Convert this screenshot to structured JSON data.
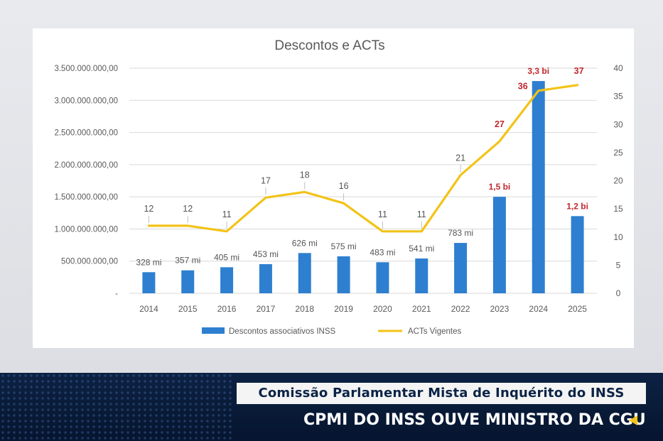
{
  "chart_data": {
    "type": "bar+line",
    "title": "Descontos e ACTs",
    "categories": [
      "2014",
      "2015",
      "2016",
      "2017",
      "2018",
      "2019",
      "2020",
      "2021",
      "2022",
      "2023",
      "2024",
      "2025"
    ],
    "series": [
      {
        "name": "Descontos associativos INSS",
        "type": "bar",
        "axis": "left",
        "color": "#2e7fd0",
        "values": [
          328000000,
          357000000,
          405000000,
          453000000,
          626000000,
          575000000,
          483000000,
          541000000,
          783000000,
          1500000000,
          3300000000,
          1200000000
        ],
        "labels": [
          "328 mi",
          "357 mi",
          "405 mi",
          "453 mi",
          "626 mi",
          "575 mi",
          "483 mi",
          "541 mi",
          "783 mi",
          "1,5 bi",
          "3,3 bi",
          "1,2 bi"
        ],
        "label_colors": [
          "#555555",
          "#555555",
          "#555555",
          "#555555",
          "#555555",
          "#555555",
          "#555555",
          "#555555",
          "#555555",
          "#c0272d",
          "#c0272d",
          "#c0272d"
        ]
      },
      {
        "name": "ACTs Vigentes",
        "type": "line",
        "axis": "right",
        "color": "#f2c318",
        "values": [
          12,
          12,
          11,
          17,
          18,
          16,
          11,
          11,
          21,
          27,
          36,
          37
        ],
        "labels": [
          "12",
          "12",
          "11",
          "17",
          "18",
          "16",
          "11",
          "11",
          "21",
          "27",
          "36",
          "37"
        ],
        "label_colors": [
          "#555555",
          "#555555",
          "#555555",
          "#555555",
          "#555555",
          "#555555",
          "#555555",
          "#555555",
          "#555555",
          "#c0272d",
          "#c0272d",
          "#c0272d"
        ]
      }
    ],
    "y_left": {
      "min": 0,
      "max": 3500000000,
      "ticks": [
        0,
        500000000,
        1000000000,
        1500000000,
        2000000000,
        2500000000,
        3000000000,
        3500000000
      ],
      "tick_labels": [
        "-",
        "500.000.000,00",
        "1.000.000.000,00",
        "1.500.000.000,00",
        "2.000.000.000,00",
        "2.500.000.000,00",
        "3.000.000.000,00",
        "3.500.000.000,00"
      ]
    },
    "y_right": {
      "min": 0,
      "max": 40,
      "ticks": [
        0,
        5,
        10,
        15,
        20,
        25,
        30,
        35,
        40
      ],
      "tick_labels": [
        "0",
        "5",
        "10",
        "15",
        "20",
        "25",
        "30",
        "35",
        "40"
      ]
    },
    "grid": true,
    "legend": "bottom"
  },
  "broadcast": {
    "subtitle": "Comissão Parlamentar Mista de Inquérito do INSS",
    "headline": "CPMI DO INSS OUVE MINISTRO DA CGU"
  }
}
